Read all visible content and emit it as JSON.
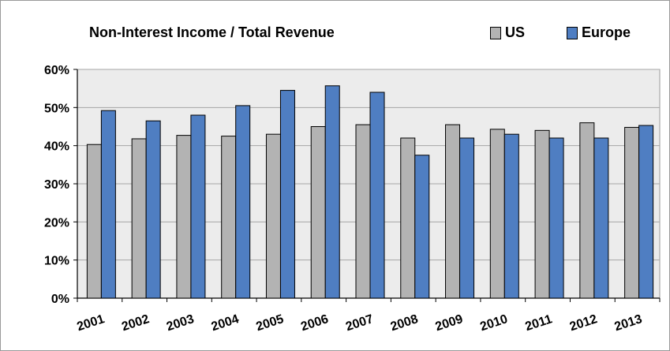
{
  "chart_data": {
    "type": "bar",
    "title": "Non-Interest Income / Total Revenue",
    "categories": [
      "2001",
      "2002",
      "2003",
      "2004",
      "2005",
      "2006",
      "2007",
      "2008",
      "2009",
      "2010",
      "2011",
      "2012",
      "2013"
    ],
    "series": [
      {
        "name": "US",
        "color": "#b3b3b3",
        "values": [
          40.3,
          41.8,
          42.7,
          42.5,
          43.0,
          45.0,
          45.5,
          42.0,
          45.5,
          44.3,
          44.0,
          46.0,
          44.8
        ]
      },
      {
        "name": "Europe",
        "color": "#4f7ec2",
        "values": [
          49.2,
          46.5,
          48.0,
          50.5,
          54.5,
          55.7,
          54.0,
          37.5,
          42.0,
          43.0,
          42.0,
          42.0,
          45.3
        ]
      }
    ],
    "yticks": [
      "0%",
      "10%",
      "20%",
      "30%",
      "40%",
      "50%",
      "60%"
    ],
    "ylim": [
      0,
      60
    ],
    "grid": true,
    "legend_position": "top-right",
    "plot_background": "#ececec"
  }
}
